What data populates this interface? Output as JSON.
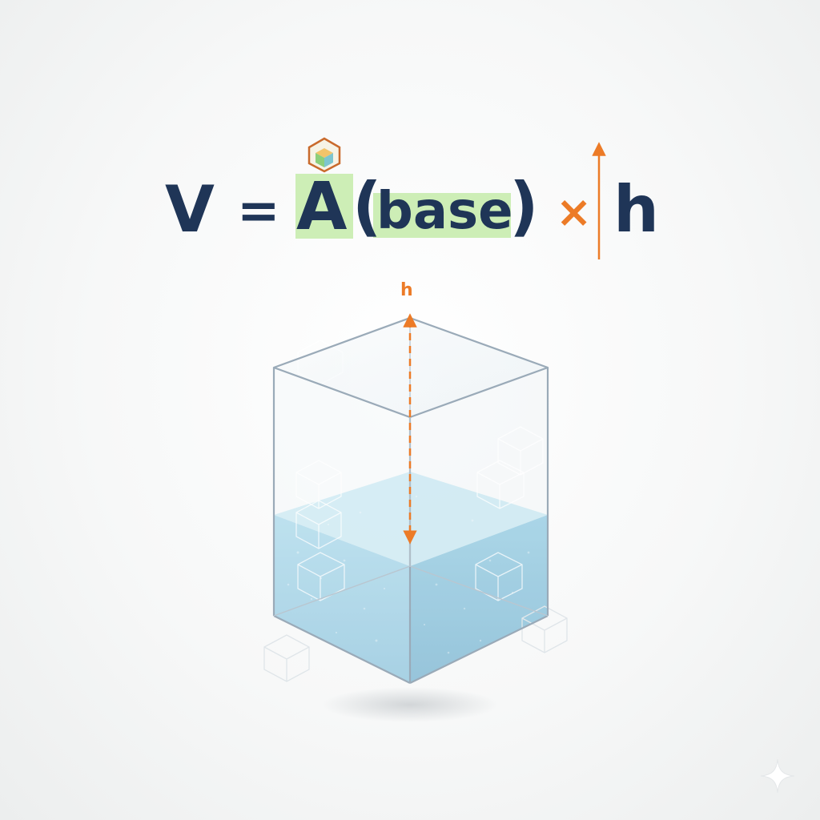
{
  "formula": {
    "volume": "V",
    "equals": "=",
    "area": "A",
    "open_paren": "(",
    "base": "base",
    "close_paren": ")",
    "times": "×",
    "height": "h"
  },
  "diagram": {
    "height_label": "h"
  },
  "colors": {
    "text": "#1f3557",
    "accent": "#ec7b27",
    "highlight": "#cdeeb6",
    "water": "#9fd1e6",
    "glass_edge": "#9aaab8"
  }
}
